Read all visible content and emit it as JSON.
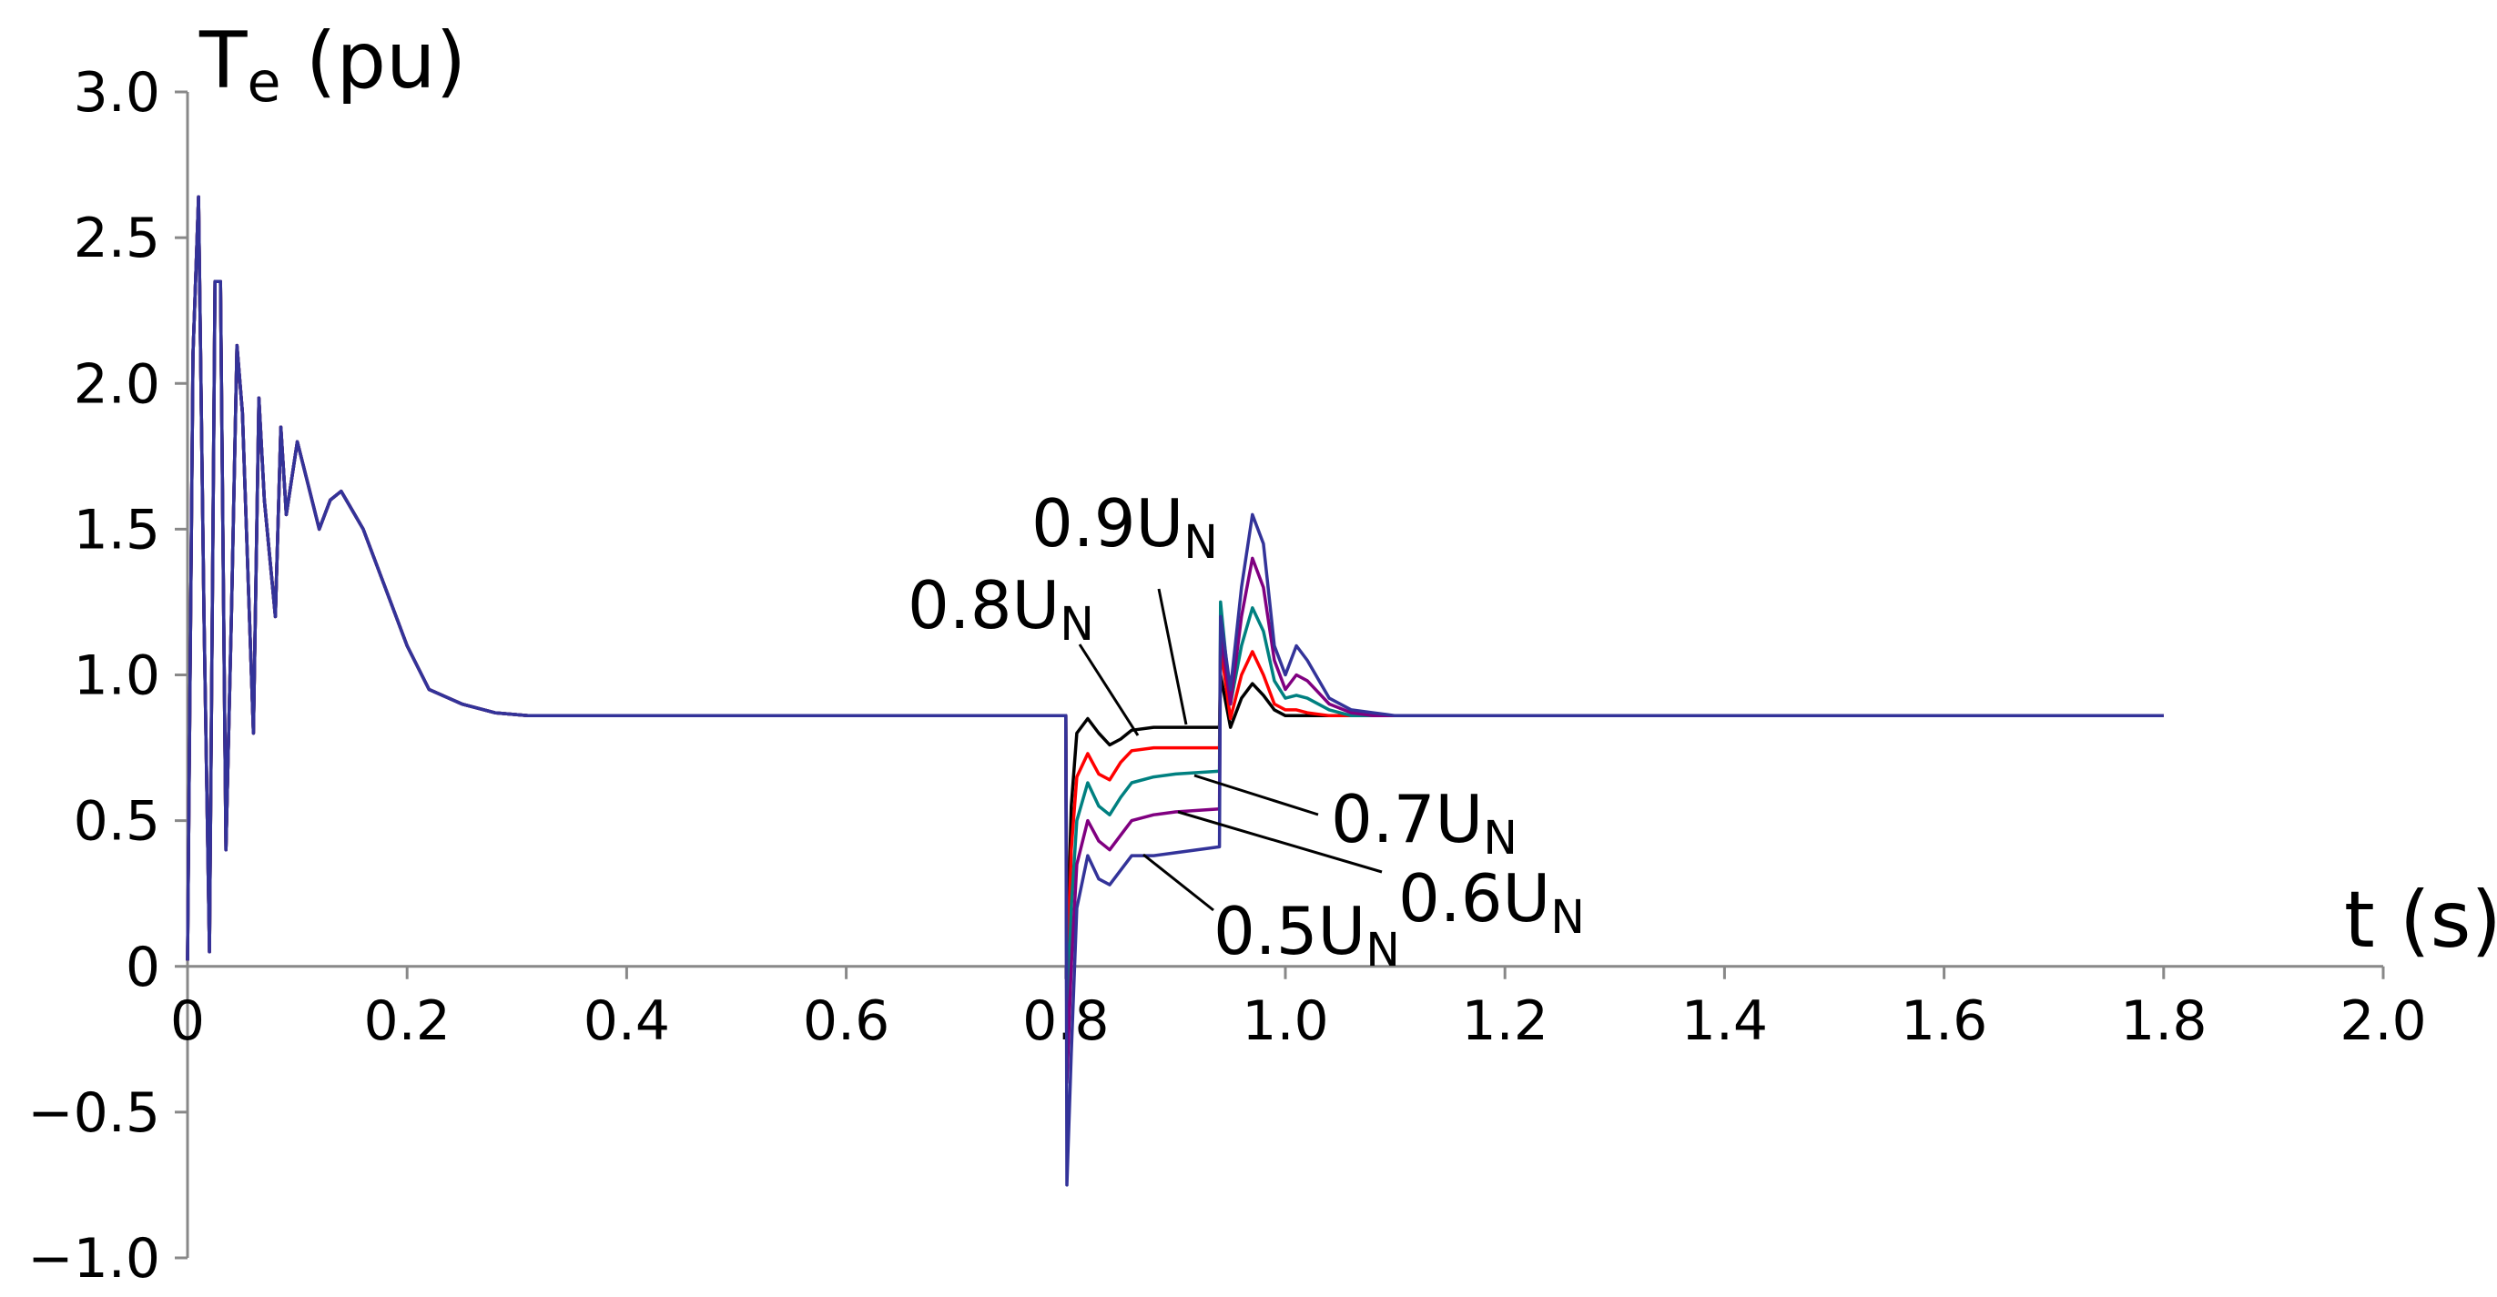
{
  "chart_data": {
    "type": "line",
    "y_label": "Te (pu)",
    "x_label": "t (s)",
    "x": [
      0,
      0.005,
      0.01,
      0.015,
      0.02,
      0.025,
      0.03,
      0.035,
      0.04,
      0.045,
      0.05,
      0.06,
      0.065,
      0.07,
      0.08,
      0.085,
      0.09,
      0.1,
      0.11,
      0.12,
      0.13,
      0.14,
      0.16,
      0.18,
      0.2,
      0.22,
      0.25,
      0.28,
      0.31,
      0.8,
      0.801,
      0.805,
      0.81,
      0.82,
      0.83,
      0.84,
      0.85,
      0.86,
      0.88,
      0.9,
      0.94,
      0.941,
      0.95,
      0.96,
      0.97,
      0.98,
      0.99,
      1.0,
      1.01,
      1.02,
      1.04,
      1.06,
      1.08,
      1.1,
      1.8
    ],
    "series": [
      {
        "name": "0.9UN",
        "color": "#000000",
        "values": [
          0.02,
          2.1,
          2.64,
          1.2,
          0.05,
          2.35,
          2.35,
          0.4,
          1.2,
          2.13,
          1.9,
          0.8,
          1.95,
          1.6,
          1.2,
          1.85,
          1.55,
          1.8,
          1.65,
          1.5,
          1.6,
          1.63,
          1.5,
          1.3,
          1.1,
          0.95,
          0.9,
          0.87,
          0.86,
          0.86,
          0.0,
          0.55,
          0.8,
          0.85,
          0.8,
          0.76,
          0.78,
          0.81,
          0.82,
          0.82,
          0.82,
          1.0,
          0.82,
          0.92,
          0.97,
          0.93,
          0.88,
          0.86,
          0.86,
          0.86,
          0.86,
          0.86,
          0.86,
          0.86,
          0.86
        ]
      },
      {
        "name": "0.8UN",
        "color": "#ff0000",
        "values": [
          0.02,
          2.1,
          2.64,
          1.2,
          0.05,
          2.35,
          2.35,
          0.4,
          1.2,
          2.13,
          1.9,
          0.8,
          1.95,
          1.6,
          1.2,
          1.85,
          1.55,
          1.8,
          1.65,
          1.5,
          1.6,
          1.63,
          1.5,
          1.3,
          1.1,
          0.95,
          0.9,
          0.87,
          0.86,
          0.86,
          -0.1,
          0.4,
          0.65,
          0.73,
          0.66,
          0.64,
          0.7,
          0.74,
          0.75,
          0.75,
          0.75,
          1.1,
          0.85,
          1.0,
          1.08,
          1.0,
          0.9,
          0.88,
          0.88,
          0.87,
          0.86,
          0.86,
          0.86,
          0.86,
          0.86
        ]
      },
      {
        "name": "0.7UN",
        "color": "#008080",
        "values": [
          0.02,
          2.1,
          2.64,
          1.2,
          0.05,
          2.35,
          2.35,
          0.4,
          1.2,
          2.13,
          1.9,
          0.8,
          1.95,
          1.6,
          1.2,
          1.85,
          1.55,
          1.8,
          1.65,
          1.5,
          1.6,
          1.63,
          1.5,
          1.3,
          1.1,
          0.95,
          0.9,
          0.87,
          0.86,
          0.86,
          -0.2,
          0.2,
          0.5,
          0.63,
          0.55,
          0.52,
          0.58,
          0.63,
          0.65,
          0.66,
          0.67,
          1.25,
          0.9,
          1.1,
          1.23,
          1.15,
          0.98,
          0.92,
          0.93,
          0.92,
          0.88,
          0.86,
          0.86,
          0.86,
          0.86
        ]
      },
      {
        "name": "0.6UN",
        "color": "#800080",
        "values": [
          0.02,
          2.1,
          2.64,
          1.2,
          0.05,
          2.35,
          2.35,
          0.4,
          1.2,
          2.13,
          1.9,
          0.8,
          1.95,
          1.6,
          1.2,
          1.85,
          1.55,
          1.8,
          1.65,
          1.5,
          1.6,
          1.63,
          1.5,
          1.3,
          1.1,
          0.95,
          0.9,
          0.87,
          0.86,
          0.86,
          -0.4,
          0.0,
          0.35,
          0.5,
          0.43,
          0.4,
          0.45,
          0.5,
          0.52,
          0.53,
          0.54,
          1.15,
          0.9,
          1.2,
          1.4,
          1.3,
          1.05,
          0.95,
          1.0,
          0.98,
          0.9,
          0.87,
          0.86,
          0.86,
          0.86
        ]
      },
      {
        "name": "0.5UN",
        "color": "#333399",
        "values": [
          0.02,
          2.1,
          2.64,
          1.2,
          0.05,
          2.35,
          2.35,
          0.4,
          1.2,
          2.13,
          1.9,
          0.8,
          1.95,
          1.6,
          1.2,
          1.85,
          1.55,
          1.8,
          1.65,
          1.5,
          1.6,
          1.63,
          1.5,
          1.3,
          1.1,
          0.95,
          0.9,
          0.87,
          0.86,
          0.86,
          -0.75,
          -0.3,
          0.2,
          0.38,
          0.3,
          0.28,
          0.33,
          0.38,
          0.38,
          0.39,
          0.41,
          1.2,
          0.95,
          1.3,
          1.55,
          1.45,
          1.1,
          1.0,
          1.1,
          1.05,
          0.92,
          0.88,
          0.87,
          0.86,
          0.86
        ]
      }
    ],
    "xlim": [
      0,
      2.0
    ],
    "xticks": [
      0,
      0.2,
      0.4,
      0.6,
      0.8,
      {
        "value": 1.0,
        "label": "1.0"
      },
      1.2,
      1.4,
      1.6,
      1.8,
      {
        "value": 2.0,
        "label": "2.0"
      }
    ],
    "ylim": [
      -1.0,
      3.0
    ],
    "yticks": [
      {
        "value": -1.0,
        "label": "−1.0"
      },
      {
        "value": -0.5,
        "label": "−0.5"
      },
      0,
      0.5,
      {
        "value": 1.0,
        "label": "1.0"
      },
      1.5,
      {
        "value": 2.0,
        "label": "2.0"
      },
      2.5,
      {
        "value": 3.0,
        "label": "3.0"
      }
    ],
    "grid": false
  }
}
